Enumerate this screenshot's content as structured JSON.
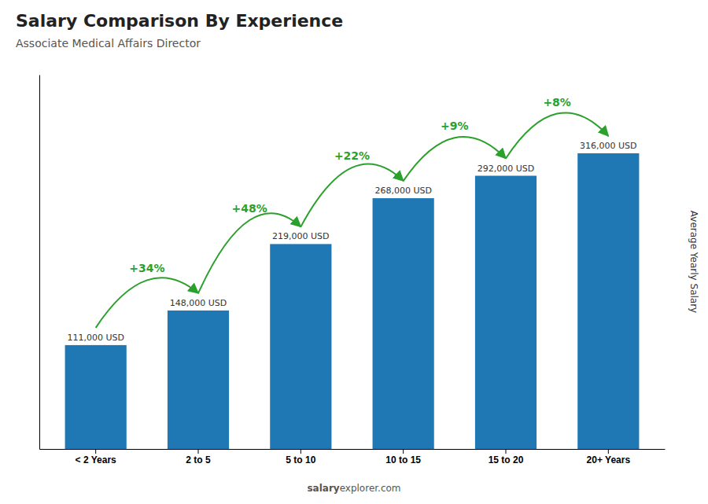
{
  "chart_data": {
    "type": "bar",
    "title": "Salary Comparison By Experience",
    "subtitle": "Associate Medical Affairs Director",
    "ylabel": "Average Yearly Salary",
    "categories": [
      "< 2 Years",
      "2 to 5",
      "5 to 10",
      "10 to 15",
      "15 to 20",
      "20+ Years"
    ],
    "values": [
      111000,
      148000,
      219000,
      268000,
      292000,
      316000
    ],
    "value_labels": [
      "111,000 USD",
      "148,000 USD",
      "219,000 USD",
      "268,000 USD",
      "292,000 USD",
      "316,000 USD"
    ],
    "data_labels": true,
    "annotations": [
      "+34%",
      "+48%",
      "+22%",
      "+9%",
      "+8%"
    ],
    "watermark": [
      "salary",
      "explorer.com"
    ],
    "ylim": [
      0,
      400000
    ],
    "tick_labels": "x",
    "grid": false
  }
}
